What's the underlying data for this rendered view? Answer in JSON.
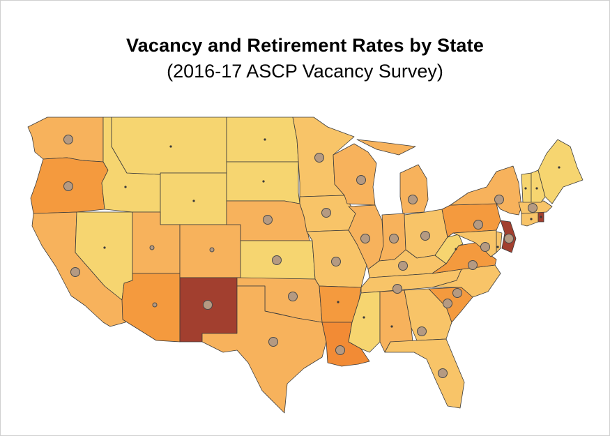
{
  "title": "Vacancy and Retirement Rates by State",
  "subtitle": "(2016-17 ASCP Vacancy Survey)",
  "palette": {
    "c1": "#f6d570",
    "c2": "#f8c468",
    "c3": "#f7b25c",
    "c4": "#f49a3e",
    "c5": "#f28b35",
    "c6": "#a23f2f",
    "bubble": "#b59a82"
  },
  "states": [
    {
      "abbr": "WA",
      "vacancy_class": 3,
      "retirement": "large"
    },
    {
      "abbr": "OR",
      "vacancy_class": 4,
      "retirement": "large"
    },
    {
      "abbr": "CA",
      "vacancy_class": 3,
      "retirement": "large"
    },
    {
      "abbr": "NV",
      "vacancy_class": 1,
      "retirement": "small"
    },
    {
      "abbr": "ID",
      "vacancy_class": 1,
      "retirement": "small"
    },
    {
      "abbr": "MT",
      "vacancy_class": 1,
      "retirement": "small"
    },
    {
      "abbr": "WY",
      "vacancy_class": 1,
      "retirement": "small"
    },
    {
      "abbr": "UT",
      "vacancy_class": 3,
      "retirement": "medium"
    },
    {
      "abbr": "AZ",
      "vacancy_class": 4,
      "retirement": "medium"
    },
    {
      "abbr": "CO",
      "vacancy_class": 3,
      "retirement": "medium"
    },
    {
      "abbr": "NM",
      "vacancy_class": 6,
      "retirement": "large"
    },
    {
      "abbr": "ND",
      "vacancy_class": 1,
      "retirement": "small"
    },
    {
      "abbr": "SD",
      "vacancy_class": 1,
      "retirement": "small"
    },
    {
      "abbr": "NE",
      "vacancy_class": 3,
      "retirement": "large"
    },
    {
      "abbr": "KS",
      "vacancy_class": 1,
      "retirement": "large"
    },
    {
      "abbr": "OK",
      "vacancy_class": 3,
      "retirement": "large"
    },
    {
      "abbr": "TX",
      "vacancy_class": 3,
      "retirement": "large"
    },
    {
      "abbr": "MN",
      "vacancy_class": 2,
      "retirement": "large"
    },
    {
      "abbr": "IA",
      "vacancy_class": 2,
      "retirement": "large"
    },
    {
      "abbr": "MO",
      "vacancy_class": 2,
      "retirement": "large"
    },
    {
      "abbr": "AR",
      "vacancy_class": 4,
      "retirement": "small"
    },
    {
      "abbr": "LA",
      "vacancy_class": 5,
      "retirement": "large"
    },
    {
      "abbr": "WI",
      "vacancy_class": 3,
      "retirement": "large"
    },
    {
      "abbr": "IL",
      "vacancy_class": 3,
      "retirement": "large"
    },
    {
      "abbr": "MI",
      "vacancy_class": 3,
      "retirement": "large"
    },
    {
      "abbr": "IN",
      "vacancy_class": 3,
      "retirement": "large"
    },
    {
      "abbr": "OH",
      "vacancy_class": 2,
      "retirement": "large"
    },
    {
      "abbr": "KY",
      "vacancy_class": 2,
      "retirement": "large"
    },
    {
      "abbr": "TN",
      "vacancy_class": 2,
      "retirement": "large"
    },
    {
      "abbr": "MS",
      "vacancy_class": 1,
      "retirement": "small"
    },
    {
      "abbr": "AL",
      "vacancy_class": 3,
      "retirement": "small"
    },
    {
      "abbr": "GA",
      "vacancy_class": 2,
      "retirement": "large"
    },
    {
      "abbr": "FL",
      "vacancy_class": 2,
      "retirement": "large"
    },
    {
      "abbr": "SC",
      "vacancy_class": 4,
      "retirement": "large"
    },
    {
      "abbr": "NC",
      "vacancy_class": 2,
      "retirement": "large"
    },
    {
      "abbr": "VA",
      "vacancy_class": 4,
      "retirement": "large"
    },
    {
      "abbr": "WV",
      "vacancy_class": 1,
      "retirement": "small"
    },
    {
      "abbr": "PA",
      "vacancy_class": 4,
      "retirement": "large"
    },
    {
      "abbr": "NY",
      "vacancy_class": 3,
      "retirement": "large"
    },
    {
      "abbr": "NJ",
      "vacancy_class": 6,
      "retirement": "large"
    },
    {
      "abbr": "DE",
      "vacancy_class": 2,
      "retirement": "small"
    },
    {
      "abbr": "MD",
      "vacancy_class": 2,
      "retirement": "large"
    },
    {
      "abbr": "CT",
      "vacancy_class": 2,
      "retirement": "small"
    },
    {
      "abbr": "RI",
      "vacancy_class": 6,
      "retirement": "small"
    },
    {
      "abbr": "MA",
      "vacancy_class": 2,
      "retirement": "large"
    },
    {
      "abbr": "VT",
      "vacancy_class": 1,
      "retirement": "small"
    },
    {
      "abbr": "NH",
      "vacancy_class": 1,
      "retirement": "small"
    },
    {
      "abbr": "ME",
      "vacancy_class": 1,
      "retirement": "small"
    }
  ]
}
